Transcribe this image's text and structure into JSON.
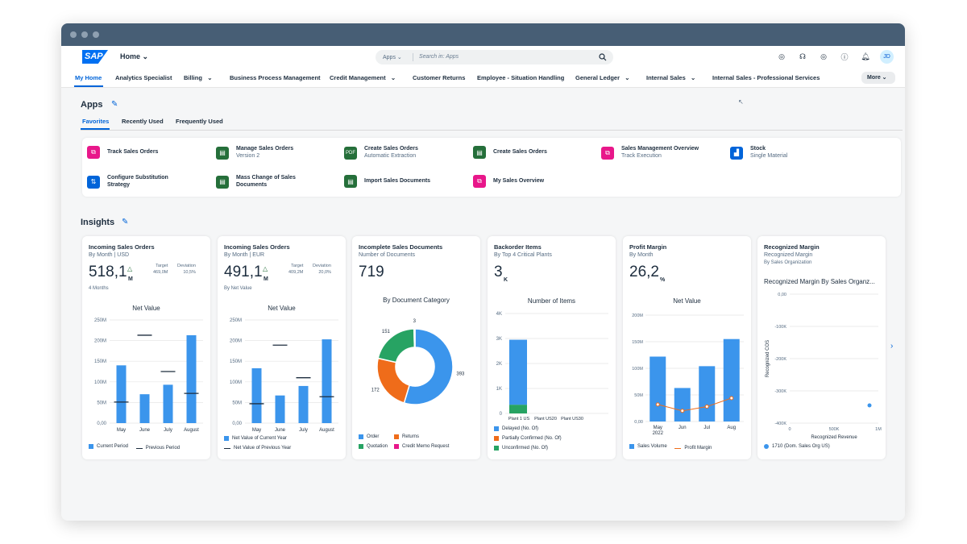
{
  "shell": {
    "logo": "SAP",
    "home": "Home",
    "search_scope": "Apps",
    "search_placeholder": "Search in: Apps",
    "user_initials": "JD"
  },
  "nav": {
    "items": [
      "My Home",
      "Analytics Specialist",
      "Billing",
      "Business Process Management",
      "Credit Management",
      "Customer Returns",
      "Employee - Situation Handling",
      "General Ledger",
      "Internal Sales",
      "Internal Sales - Professional Services"
    ],
    "more": "More"
  },
  "apps": {
    "title": "Apps",
    "tabs": [
      "Favorites",
      "Recently Used",
      "Frequently Used"
    ],
    "tiles": [
      {
        "title": "Track Sales Orders",
        "subtitle": "",
        "color": "#e8178a",
        "icon": "track-icon"
      },
      {
        "title": "Manage Sales Orders",
        "subtitle": "Version 2",
        "color": "#256f3a",
        "icon": "document-icon"
      },
      {
        "title": "Create Sales Orders",
        "subtitle": "Automatic Extraction",
        "color": "#256f3a",
        "icon": "pdf-icon"
      },
      {
        "title": "Create Sales Orders",
        "subtitle": "",
        "color": "#256f3a",
        "icon": "document-icon"
      },
      {
        "title": "Sales Management Overview",
        "subtitle": "Track Execution",
        "color": "#e8178a",
        "icon": "overview-icon"
      },
      {
        "title": "Stock",
        "subtitle": "Single Material",
        "color": "#0064d9",
        "icon": "chart-icon"
      },
      {
        "title": "Configure Substitution Strategy",
        "subtitle": "",
        "color": "#0064d9",
        "icon": "settings-icon"
      },
      {
        "title": "Mass Change of Sales Documents",
        "subtitle": "",
        "color": "#256f3a",
        "icon": "mass-change-icon"
      },
      {
        "title": "Import Sales Documents",
        "subtitle": "",
        "color": "#256f3a",
        "icon": "import-icon"
      },
      {
        "title": "My Sales Overview",
        "subtitle": "",
        "color": "#e8178a",
        "icon": "overview-icon"
      }
    ]
  },
  "insights": {
    "title": "Insights",
    "cards": [
      {
        "title": "Incoming Sales Orders",
        "subtitle": "By Month | USD",
        "kpi": "518,1",
        "unit": "M",
        "target_label": "Target",
        "target": "469,0M",
        "deviation_label": "Deviation",
        "deviation": "10,5%",
        "note": "4 Months",
        "chart_title": "Net Value",
        "legend": [
          "Current Period",
          "Previous Period"
        ]
      },
      {
        "title": "Incoming Sales Orders",
        "subtitle": "By Month | EUR",
        "kpi": "491,1",
        "unit": "M",
        "target_label": "Target",
        "target": "409,2M",
        "deviation_label": "Deviation",
        "deviation": "20,0%",
        "note": "By Net Value",
        "chart_title": "Net Value",
        "legend": [
          "Net Value of Current Year",
          "Net Value of Previous Year"
        ]
      },
      {
        "title": "Incomplete Sales Documents",
        "subtitle": "Number of Documents",
        "kpi": "719",
        "chart_title": "By Document Category",
        "legend": [
          "Order",
          "Returns",
          "Quotation",
          "Credit Memo Request"
        ]
      },
      {
        "title": "Backorder Items",
        "subtitle": "By Top 4 Critical Plants",
        "kpi": "3",
        "unit": "K",
        "chart_title": "Number of Items",
        "legend": [
          "Delayed (No. Of)",
          "Partially Confirmed (No. Of)",
          "Unconfirmed (No. Of)"
        ]
      },
      {
        "title": "Profit Margin",
        "subtitle": "By Month",
        "kpi": "26,2",
        "unit": "%",
        "chart_title": "Net Value",
        "legend": [
          "Sales Volume",
          "Profit Margin"
        ]
      },
      {
        "title": "Recognized Margin",
        "subtitle": "Recognized Margin",
        "subtitle2": "By Sales Organization",
        "chart_title": "Recognized Margin By Sales Organz...",
        "ylabel": "Recognized COS",
        "xlabel": "Recognized Revenue",
        "legend": [
          "1710 (Dom. Sales Org US)"
        ]
      }
    ]
  },
  "chart_data": [
    {
      "type": "bar",
      "title": "Net Value",
      "categories": [
        "May",
        "June",
        "July",
        "August"
      ],
      "series": [
        {
          "name": "Current Period",
          "values": [
            140,
            70,
            93,
            213
          ]
        },
        {
          "name": "Previous Period",
          "values": [
            51,
            213,
            125,
            72
          ]
        }
      ],
      "yticks": [
        "0,00",
        "50M",
        "100M",
        "150M",
        "200M",
        "250M"
      ],
      "ylim": [
        0,
        250
      ]
    },
    {
      "type": "bar",
      "title": "Net Value",
      "categories": [
        "May",
        "June",
        "July",
        "August"
      ],
      "series": [
        {
          "name": "Net Value of Current Year",
          "values": [
            133,
            67,
            90,
            203
          ]
        },
        {
          "name": "Net Value of Previous Year",
          "values": [
            47,
            189,
            110,
            64
          ]
        }
      ],
      "yticks": [
        "0,00",
        "50M",
        "100M",
        "150M",
        "200M",
        "250M"
      ],
      "ylim": [
        0,
        250
      ]
    },
    {
      "type": "pie",
      "title": "By Document Category",
      "categories": [
        "Order",
        "Returns",
        "Quotation",
        "Credit Memo Request"
      ],
      "values": [
        393,
        172,
        151,
        3
      ],
      "colors": [
        "#3b95ec",
        "#ef6c1a",
        "#27a363",
        "#e8178a"
      ]
    },
    {
      "type": "bar",
      "title": "Number of Items",
      "categories": [
        "Plant 1 US",
        "Plant US20",
        "Plant US30"
      ],
      "series": [
        {
          "name": "Delayed (No. Of)",
          "values": [
            2600,
            0,
            0
          ]
        },
        {
          "name": "Partially Confirmed (No. Of)",
          "values": [
            0,
            0,
            0
          ]
        },
        {
          "name": "Unconfirmed (No. Of)",
          "values": [
            350,
            0,
            0
          ]
        }
      ],
      "yticks": [
        "0",
        "1K",
        "2K",
        "3K",
        "4K"
      ],
      "ylim": [
        0,
        4000
      ]
    },
    {
      "type": "bar",
      "title": "Net Value",
      "categories": [
        "May 2022",
        "Jun",
        "Jul",
        "Aug"
      ],
      "series": [
        {
          "name": "Sales Volume",
          "values": [
            122,
            63,
            104,
            155
          ]
        },
        {
          "name": "Profit Margin",
          "values": [
            32,
            20,
            28,
            44
          ]
        }
      ],
      "yticks": [
        "0,00",
        "50M",
        "100M",
        "150M",
        "200M"
      ],
      "ylim": [
        0,
        200
      ]
    },
    {
      "type": "scatter",
      "title": "Recognized Margin By Sales Organz...",
      "xlabel": "Recognized Revenue",
      "ylabel": "Recognized COS",
      "xticks": [
        "0",
        "500K",
        "1M"
      ],
      "yticks": [
        "0,00",
        "-100K",
        "-200K",
        "-300K",
        "-400K"
      ],
      "xlim": [
        0,
        1000000
      ],
      "ylim": [
        -400000,
        0
      ],
      "series": [
        {
          "name": "1710 (Dom. Sales Org US)",
          "x": [
            900000
          ],
          "y": [
            -345000
          ]
        }
      ]
    }
  ]
}
